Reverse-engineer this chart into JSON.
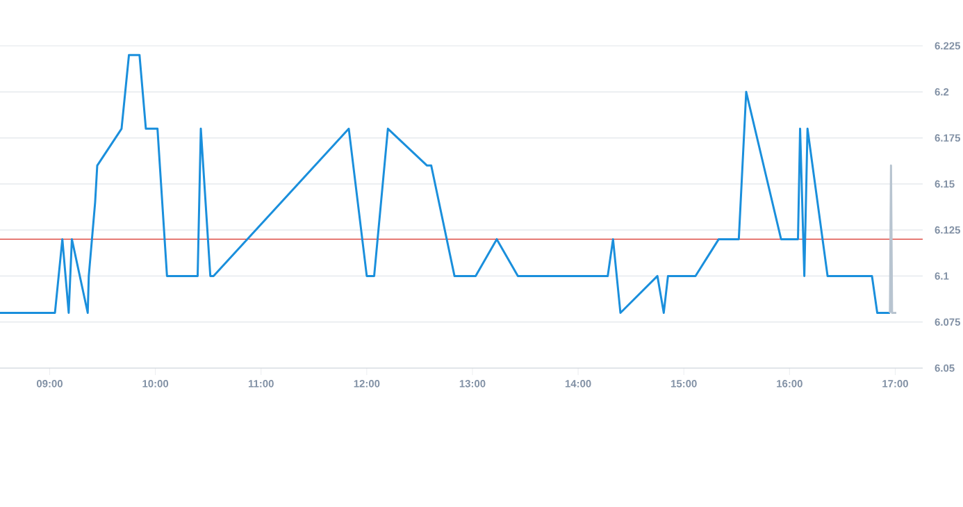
{
  "chart_data": {
    "type": "line",
    "series": [
      {
        "color": "#1a8fdc",
        "x": [
          8.53,
          9.05,
          9.12,
          9.18,
          9.21,
          9.36,
          9.37,
          9.43,
          9.45,
          9.68,
          9.75,
          9.85,
          9.91,
          10.02,
          10.11,
          10.4,
          10.43,
          10.52,
          10.55,
          11.83,
          12.0,
          12.07,
          12.2,
          12.57,
          12.61,
          12.83,
          13.03,
          13.23,
          13.43,
          14.28,
          14.33,
          14.4,
          14.75,
          14.81,
          14.85,
          15.11,
          15.33,
          15.52,
          15.59,
          15.92,
          16.08,
          16.1,
          16.14,
          16.17,
          16.36,
          16.78,
          16.83,
          16.95
        ],
        "values": [
          6.08,
          6.08,
          6.12,
          6.08,
          6.12,
          6.08,
          6.1,
          6.14,
          6.16,
          6.18,
          6.22,
          6.22,
          6.18,
          6.18,
          6.1,
          6.1,
          6.18,
          6.1,
          6.1,
          6.18,
          6.1,
          6.1,
          6.18,
          6.16,
          6.16,
          6.1,
          6.1,
          6.12,
          6.1,
          6.1,
          6.12,
          6.08,
          6.1,
          6.08,
          6.1,
          6.1,
          6.12,
          6.12,
          6.2,
          6.12,
          6.12,
          6.18,
          6.1,
          6.18,
          6.1,
          6.1,
          6.08,
          6.08
        ]
      },
      {
        "color": "#b8c4d0",
        "x": [
          16.95,
          16.96,
          16.97,
          17.01
        ],
        "values": [
          6.08,
          6.16,
          6.08,
          6.08
        ]
      }
    ],
    "xlim": [
      8.53,
      17.26
    ],
    "ylim": [
      6.05,
      6.225
    ],
    "xticks": [
      {
        "value": 9,
        "label": "09:00"
      },
      {
        "value": 10,
        "label": "10:00"
      },
      {
        "value": 11,
        "label": "11:00"
      },
      {
        "value": 12,
        "label": "12:00"
      },
      {
        "value": 13,
        "label": "13:00"
      },
      {
        "value": 14,
        "label": "14:00"
      },
      {
        "value": 15,
        "label": "15:00"
      },
      {
        "value": 16,
        "label": "16:00"
      },
      {
        "value": 17,
        "label": "17:00"
      }
    ],
    "yticks": [
      6.05,
      6.075,
      {
        "value": 6.1,
        "label": "6.1"
      },
      6.125,
      {
        "value": 6.15,
        "label": "6.15"
      },
      6.175,
      {
        "value": 6.2,
        "label": "6.2"
      },
      6.225
    ],
    "ref_lines": [
      {
        "axis": "y",
        "value": 6.12,
        "color": "#d9342b"
      }
    ],
    "grid": "y",
    "line_style": "solid"
  }
}
